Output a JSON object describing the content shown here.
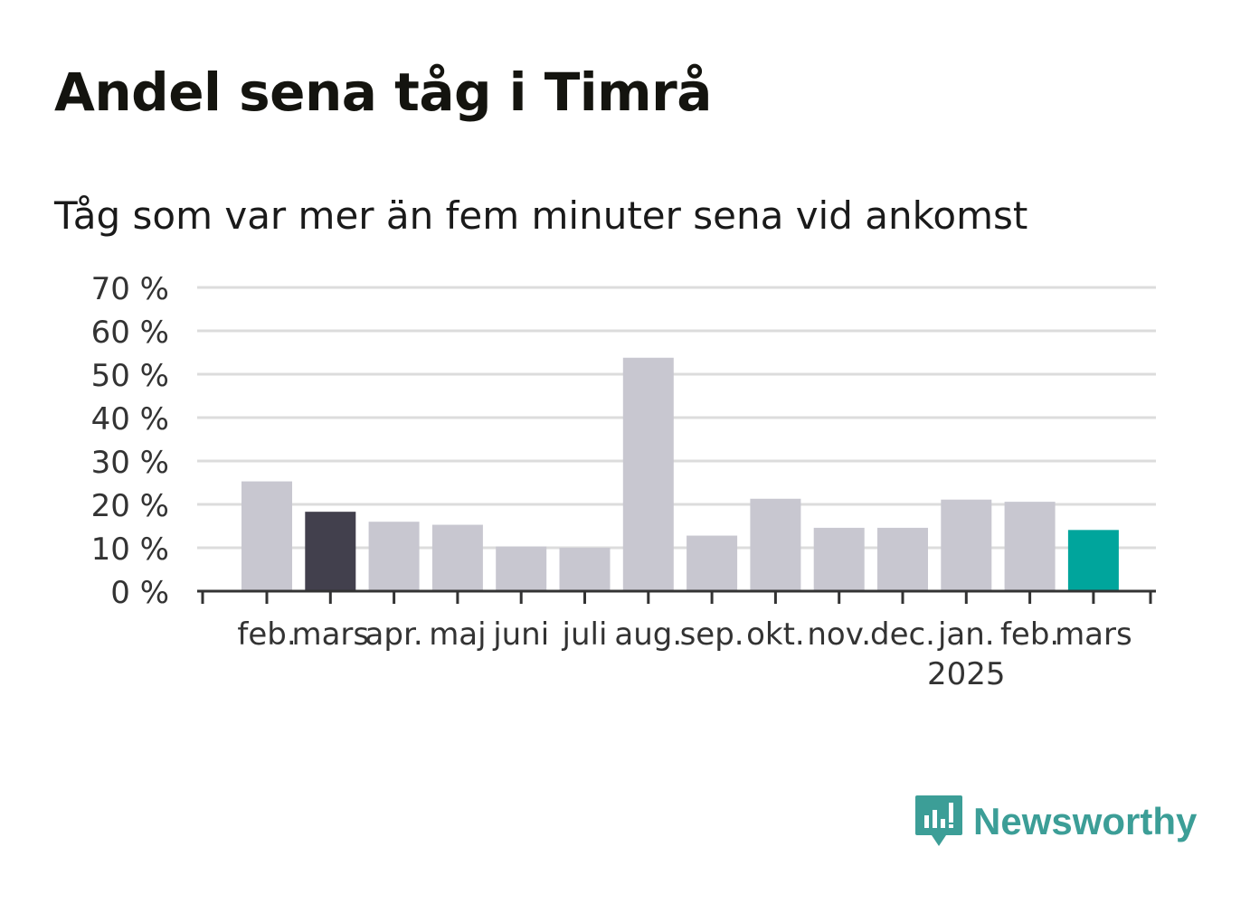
{
  "header": {
    "title": "Andel sena tåg i Timrå",
    "subtitle": "Tåg som var mer än fem minuter sena vid ankomst"
  },
  "brand": {
    "name": "Newsworthy",
    "color": "#3c9e97"
  },
  "colors": {
    "default_bar": "#c8c7d0",
    "highlight_prev_year": "#42404d",
    "highlight_current": "#00a59c",
    "grid": "#dcdcdc",
    "axis": "#333333"
  },
  "chart_data": {
    "type": "bar",
    "categories": [
      "feb.",
      "mars",
      "apr.",
      "maj",
      "juni",
      "juli",
      "aug.",
      "sep.",
      "okt.",
      "nov.",
      "dec.",
      "jan.",
      "feb.",
      "mars"
    ],
    "year_labels": [
      "",
      "",
      "",
      "",
      "",
      "",
      "",
      "",
      "",
      "",
      "",
      "2025",
      "",
      ""
    ],
    "values": [
      25.3,
      18.3,
      16.0,
      15.3,
      10.3,
      10.0,
      53.8,
      12.8,
      21.3,
      14.6,
      14.6,
      21.1,
      20.6,
      14.1
    ],
    "bar_colors": [
      "default",
      "highlight_prev_year",
      "default",
      "default",
      "default",
      "default",
      "default",
      "default",
      "default",
      "default",
      "default",
      "default",
      "default",
      "highlight_current"
    ],
    "yticks": [
      "0 %",
      "10 %",
      "20 %",
      "30 %",
      "40 %",
      "50 %",
      "60 %",
      "70 %"
    ],
    "ylim": [
      0,
      70
    ],
    "grid": true,
    "xlabel": "",
    "ylabel": ""
  }
}
